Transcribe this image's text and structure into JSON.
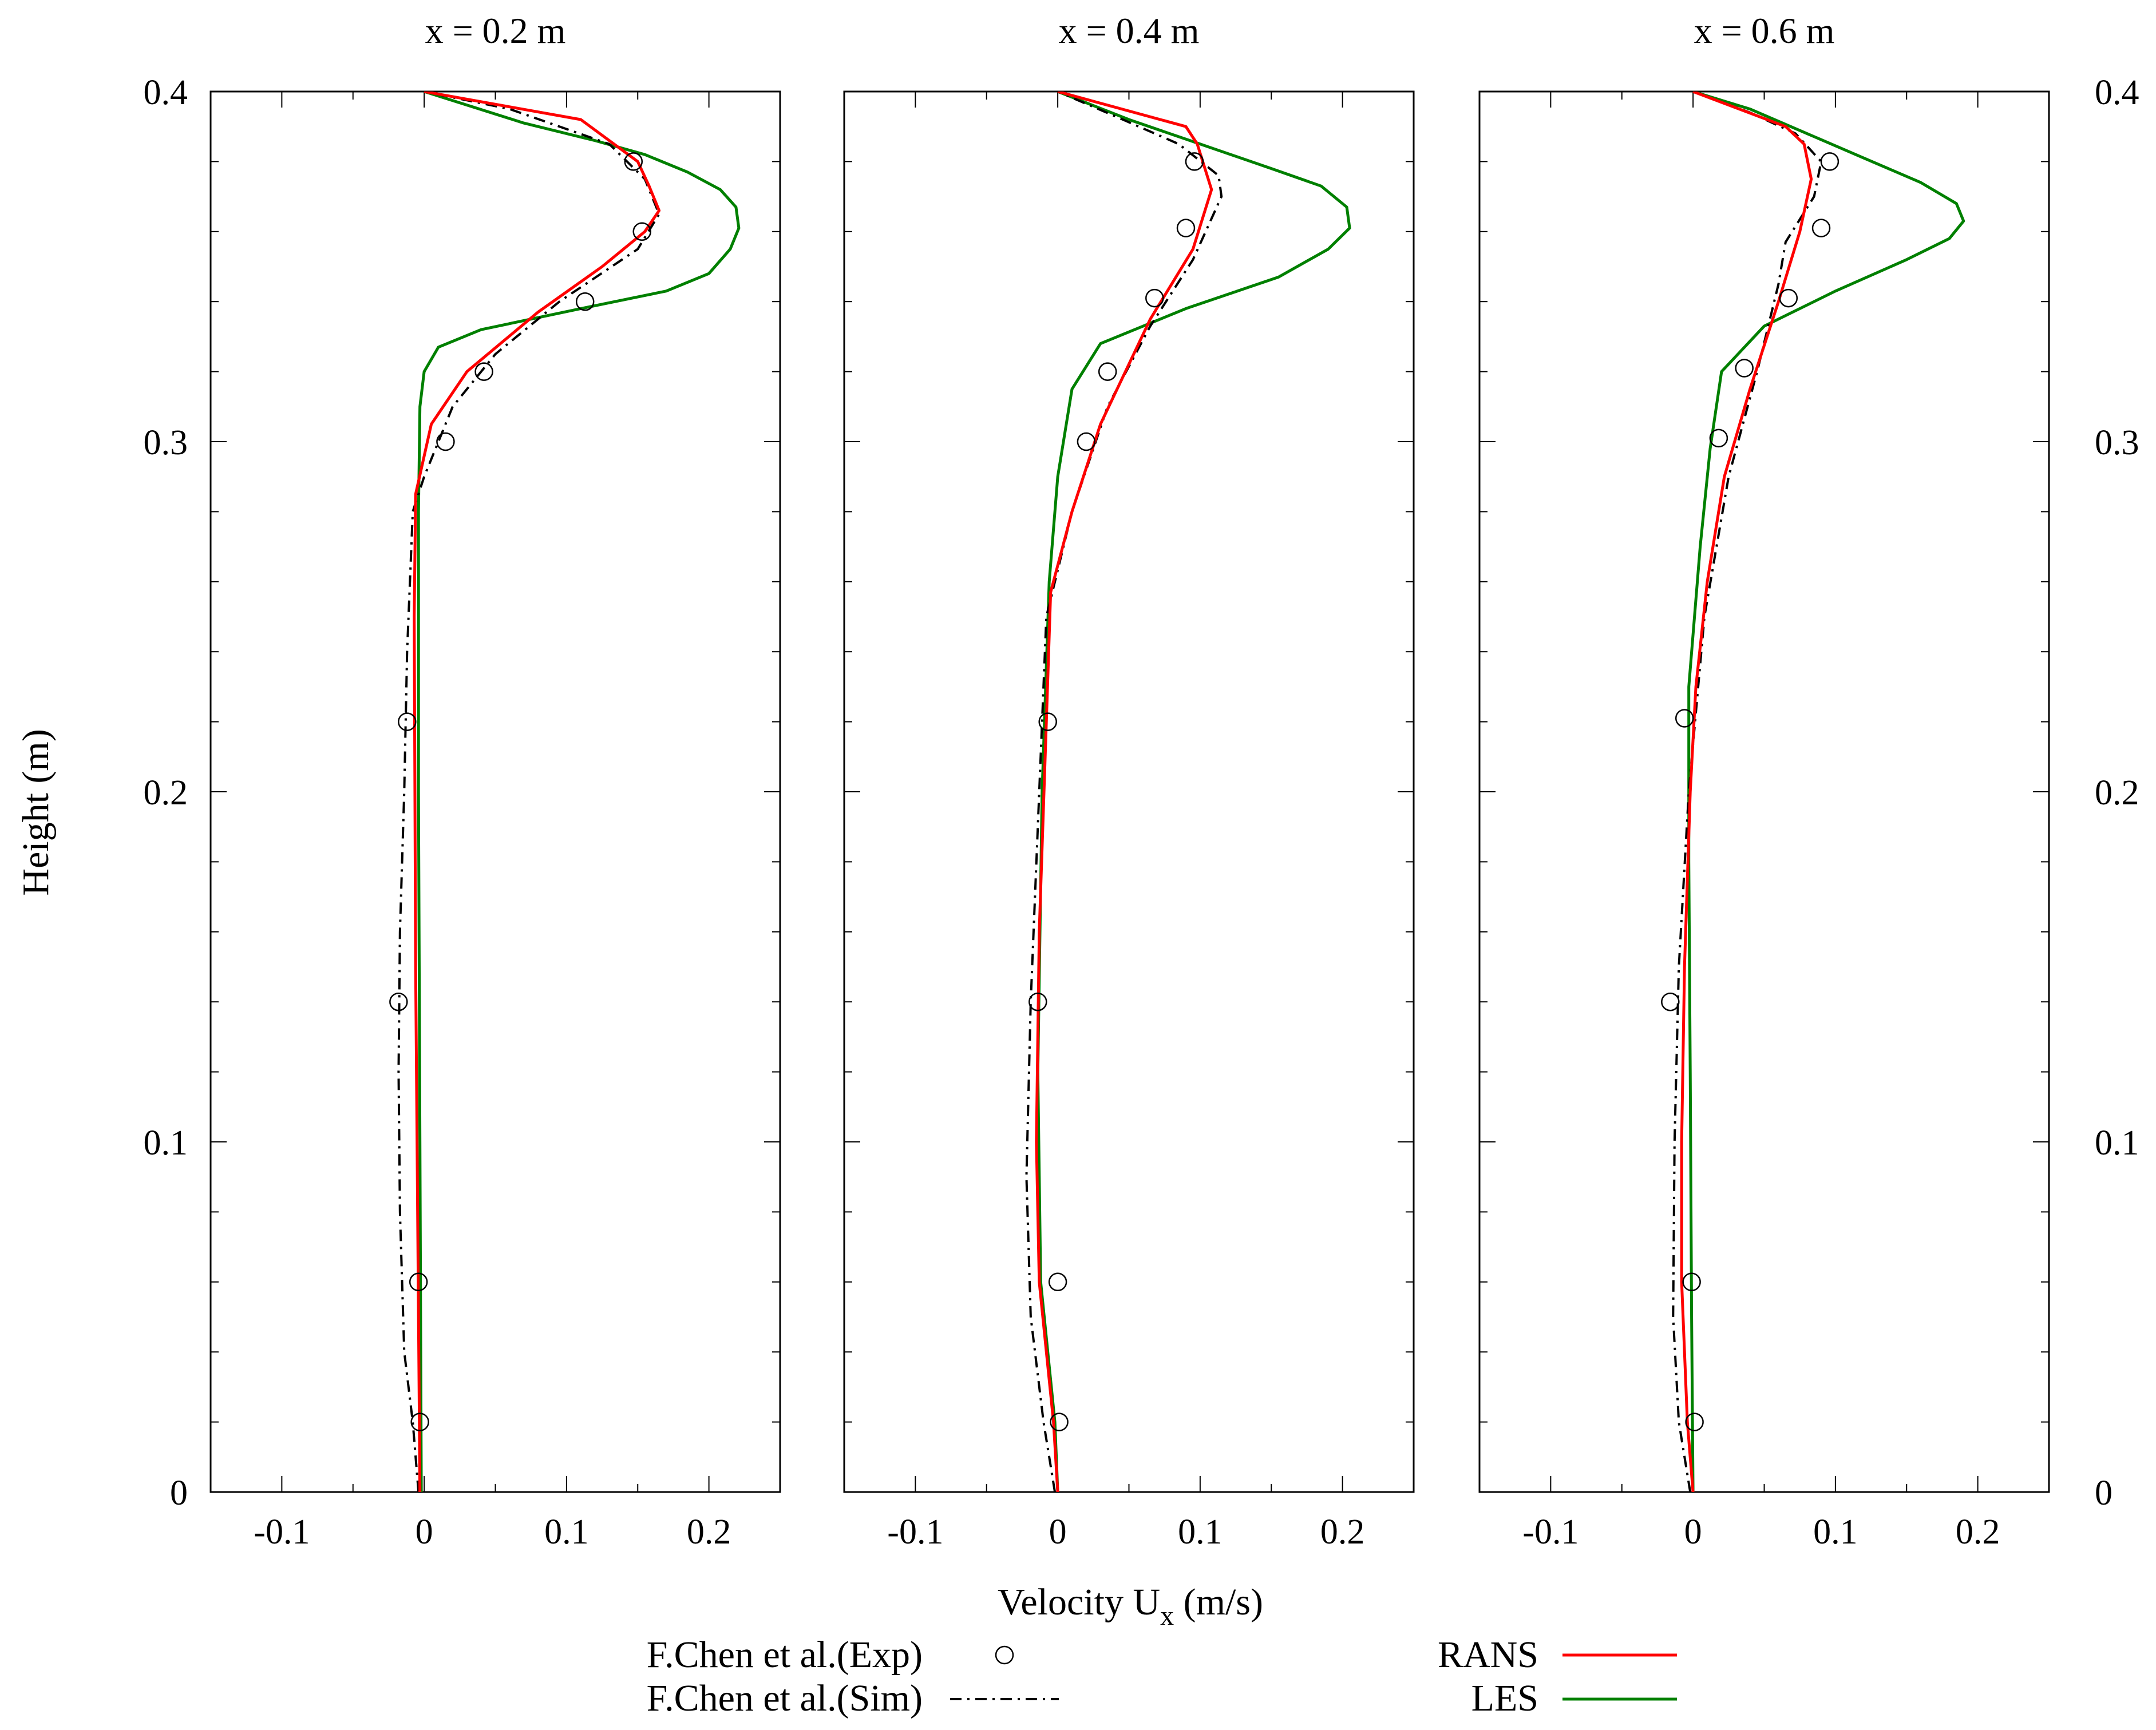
{
  "chart_data": {
    "type": "line",
    "xlabel": "Velocity U",
    "xlabel_sub": "x",
    "xlabel_units": " (m/s)",
    "ylabel": "Height (m)",
    "xlim": [
      -0.15,
      0.25
    ],
    "ylim": [
      0,
      0.4
    ],
    "x_ticks": [
      -0.1,
      0,
      0.1,
      0.2
    ],
    "x_tick_labels": [
      "-0.1",
      "0",
      "0.1",
      "0.2"
    ],
    "y_ticks": [
      0,
      0.1,
      0.2,
      0.3,
      0.4
    ],
    "y_tick_labels": [
      "0",
      "0.1",
      "0.2",
      "0.3",
      "0.4"
    ],
    "legend": [
      {
        "key": "exp",
        "label": "F.Chen et al.(Exp)",
        "style": "circle",
        "color": "#000000"
      },
      {
        "key": "sim",
        "label": "F.Chen et al.(Sim)",
        "style": "dashdot",
        "color": "#000000"
      },
      {
        "key": "rans",
        "label": "RANS",
        "style": "line",
        "color": "#ff0000"
      },
      {
        "key": "les",
        "label": "LES",
        "style": "line",
        "color": "#008000"
      }
    ],
    "panels": [
      {
        "title": "x = 0.2 m",
        "exp": [
          [
            -0.003,
            0.02
          ],
          [
            -0.004,
            0.06
          ],
          [
            -0.018,
            0.14
          ],
          [
            -0.012,
            0.22
          ],
          [
            0.015,
            0.3
          ],
          [
            0.042,
            0.32
          ],
          [
            0.113,
            0.34
          ],
          [
            0.153,
            0.36
          ],
          [
            0.147,
            0.38
          ]
        ],
        "sim": [
          [
            -0.004,
            0.0
          ],
          [
            -0.008,
            0.02
          ],
          [
            -0.014,
            0.04
          ],
          [
            -0.017,
            0.08
          ],
          [
            -0.018,
            0.12
          ],
          [
            -0.017,
            0.16
          ],
          [
            -0.014,
            0.2
          ],
          [
            -0.012,
            0.24
          ],
          [
            -0.008,
            0.28
          ],
          [
            0.0,
            0.29
          ],
          [
            0.02,
            0.31
          ],
          [
            0.05,
            0.325
          ],
          [
            0.095,
            0.34
          ],
          [
            0.15,
            0.355
          ],
          [
            0.165,
            0.365
          ],
          [
            0.155,
            0.375
          ],
          [
            0.13,
            0.385
          ],
          [
            0.06,
            0.395
          ],
          [
            0.0,
            0.4
          ]
        ],
        "rans": [
          [
            -0.003,
            0.0
          ],
          [
            -0.004,
            0.05
          ],
          [
            -0.006,
            0.15
          ],
          [
            -0.007,
            0.25
          ],
          [
            -0.006,
            0.285
          ],
          [
            0.005,
            0.305
          ],
          [
            0.03,
            0.32
          ],
          [
            0.08,
            0.337
          ],
          [
            0.125,
            0.35
          ],
          [
            0.155,
            0.36
          ],
          [
            0.165,
            0.366
          ],
          [
            0.158,
            0.373
          ],
          [
            0.15,
            0.38
          ],
          [
            0.11,
            0.392
          ],
          [
            0.0,
            0.4
          ]
        ],
        "les": [
          [
            -0.002,
            0.0
          ],
          [
            -0.003,
            0.1
          ],
          [
            -0.004,
            0.2
          ],
          [
            -0.004,
            0.28
          ],
          [
            -0.003,
            0.31
          ],
          [
            0.0,
            0.32
          ],
          [
            0.01,
            0.327
          ],
          [
            0.04,
            0.332
          ],
          [
            0.11,
            0.338
          ],
          [
            0.17,
            0.343
          ],
          [
            0.2,
            0.348
          ],
          [
            0.215,
            0.355
          ],
          [
            0.221,
            0.361
          ],
          [
            0.219,
            0.367
          ],
          [
            0.208,
            0.372
          ],
          [
            0.185,
            0.377
          ],
          [
            0.155,
            0.382
          ],
          [
            0.12,
            0.386
          ],
          [
            0.07,
            0.391
          ],
          [
            0.0,
            0.4
          ]
        ]
      },
      {
        "title": "x = 0.4 m",
        "exp": [
          [
            0.001,
            0.02
          ],
          [
            0.0,
            0.06
          ],
          [
            -0.014,
            0.14
          ],
          [
            -0.007,
            0.22
          ],
          [
            0.02,
            0.3
          ],
          [
            0.035,
            0.32
          ],
          [
            0.068,
            0.341
          ],
          [
            0.09,
            0.361
          ],
          [
            0.096,
            0.38
          ]
        ],
        "sim": [
          [
            -0.002,
            0.0
          ],
          [
            -0.01,
            0.02
          ],
          [
            -0.019,
            0.05
          ],
          [
            -0.022,
            0.09
          ],
          [
            -0.019,
            0.14
          ],
          [
            -0.014,
            0.19
          ],
          [
            -0.008,
            0.25
          ],
          [
            0.01,
            0.28
          ],
          [
            0.035,
            0.31
          ],
          [
            0.065,
            0.333
          ],
          [
            0.095,
            0.352
          ],
          [
            0.115,
            0.37
          ],
          [
            0.113,
            0.376
          ],
          [
            0.085,
            0.385
          ],
          [
            0.04,
            0.393
          ],
          [
            0.0,
            0.4
          ]
        ],
        "rans": [
          [
            0.0,
            0.0
          ],
          [
            -0.003,
            0.02
          ],
          [
            -0.013,
            0.06
          ],
          [
            -0.015,
            0.1
          ],
          [
            -0.013,
            0.16
          ],
          [
            -0.008,
            0.22
          ],
          [
            -0.005,
            0.257
          ],
          [
            0.01,
            0.28
          ],
          [
            0.03,
            0.305
          ],
          [
            0.065,
            0.335
          ],
          [
            0.095,
            0.355
          ],
          [
            0.108,
            0.372
          ],
          [
            0.098,
            0.385
          ],
          [
            0.09,
            0.39
          ],
          [
            0.0,
            0.4
          ]
        ],
        "les": [
          [
            0.0,
            0.0
          ],
          [
            -0.002,
            0.02
          ],
          [
            -0.012,
            0.06
          ],
          [
            -0.014,
            0.12
          ],
          [
            -0.011,
            0.2
          ],
          [
            -0.006,
            0.26
          ],
          [
            0.0,
            0.29
          ],
          [
            0.01,
            0.315
          ],
          [
            0.03,
            0.328
          ],
          [
            0.09,
            0.338
          ],
          [
            0.155,
            0.347
          ],
          [
            0.19,
            0.355
          ],
          [
            0.205,
            0.361
          ],
          [
            0.203,
            0.367
          ],
          [
            0.185,
            0.373
          ],
          [
            0.15,
            0.378
          ],
          [
            0.1,
            0.385
          ],
          [
            0.05,
            0.392
          ],
          [
            0.0,
            0.4
          ]
        ]
      },
      {
        "title": "x = 0.6 m",
        "exp": [
          [
            0.001,
            0.02
          ],
          [
            -0.001,
            0.06
          ],
          [
            -0.016,
            0.14
          ],
          [
            -0.006,
            0.221
          ],
          [
            0.018,
            0.301
          ],
          [
            0.036,
            0.321
          ],
          [
            0.067,
            0.341
          ],
          [
            0.09,
            0.361
          ],
          [
            0.096,
            0.38
          ]
        ],
        "sim": [
          [
            -0.002,
            0.0
          ],
          [
            -0.01,
            0.02
          ],
          [
            -0.014,
            0.05
          ],
          [
            -0.013,
            0.1
          ],
          [
            -0.01,
            0.15
          ],
          [
            -0.003,
            0.2
          ],
          [
            0.008,
            0.25
          ],
          [
            0.025,
            0.29
          ],
          [
            0.045,
            0.32
          ],
          [
            0.06,
            0.345
          ],
          [
            0.065,
            0.357
          ],
          [
            0.085,
            0.37
          ],
          [
            0.09,
            0.38
          ],
          [
            0.072,
            0.388
          ],
          [
            0.04,
            0.394
          ],
          [
            0.0,
            0.4
          ]
        ],
        "rans": [
          [
            0.0,
            0.0
          ],
          [
            -0.004,
            0.02
          ],
          [
            -0.008,
            0.06
          ],
          [
            -0.008,
            0.1
          ],
          [
            -0.006,
            0.15
          ],
          [
            -0.002,
            0.2
          ],
          [
            0.002,
            0.23
          ],
          [
            0.01,
            0.26
          ],
          [
            0.022,
            0.29
          ],
          [
            0.04,
            0.315
          ],
          [
            0.06,
            0.34
          ],
          [
            0.075,
            0.36
          ],
          [
            0.083,
            0.375
          ],
          [
            0.078,
            0.385
          ],
          [
            0.065,
            0.39
          ],
          [
            0.0,
            0.4
          ]
        ],
        "les": [
          [
            0.0,
            0.0
          ],
          [
            -0.001,
            0.05
          ],
          [
            -0.002,
            0.12
          ],
          [
            -0.003,
            0.18
          ],
          [
            -0.003,
            0.23
          ],
          [
            0.005,
            0.27
          ],
          [
            0.012,
            0.298
          ],
          [
            0.02,
            0.32
          ],
          [
            0.05,
            0.333
          ],
          [
            0.1,
            0.343
          ],
          [
            0.15,
            0.352
          ],
          [
            0.18,
            0.358
          ],
          [
            0.19,
            0.363
          ],
          [
            0.185,
            0.368
          ],
          [
            0.16,
            0.374
          ],
          [
            0.12,
            0.381
          ],
          [
            0.08,
            0.388
          ],
          [
            0.04,
            0.395
          ],
          [
            0.0,
            0.4
          ]
        ]
      }
    ]
  }
}
